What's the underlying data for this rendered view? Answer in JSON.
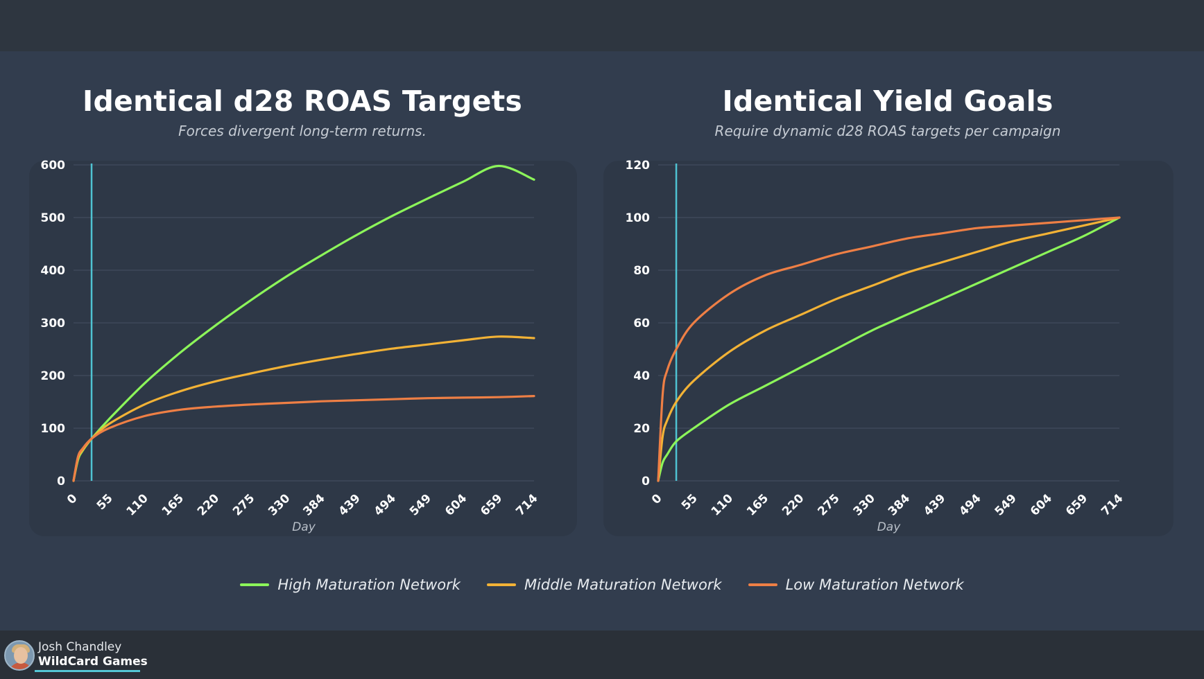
{
  "colors": {
    "high": "#8cf55a",
    "middle": "#f2b236",
    "low": "#ee7f45",
    "marker": "#4fc3d3",
    "grid": "#3e495a"
  },
  "legend": [
    {
      "key": "high",
      "label": "High Maturation Network"
    },
    {
      "key": "middle",
      "label": "Middle Maturation Network"
    },
    {
      "key": "low",
      "label": "Low Maturation Network"
    }
  ],
  "presenter": {
    "name": "Josh Chandley",
    "company": "WildCard Games"
  },
  "chart_data": [
    {
      "type": "line",
      "title": "Identical d28 ROAS Targets",
      "subtitle": "Forces divergent long-term returns.",
      "xlabel": "Day",
      "ylabel": "",
      "xlim": [
        0,
        714
      ],
      "ylim": [
        0,
        600
      ],
      "yticks": [
        0,
        100,
        200,
        300,
        400,
        500,
        600
      ],
      "xticks": [
        0,
        55,
        110,
        165,
        220,
        275,
        330,
        384,
        439,
        494,
        549,
        604,
        659,
        714
      ],
      "marker_day": 28,
      "grid": true,
      "x": [
        0,
        7,
        14,
        28,
        55,
        110,
        165,
        220,
        275,
        330,
        384,
        439,
        494,
        549,
        604,
        659,
        714
      ],
      "series": [
        {
          "name": "High Maturation Network",
          "key": "high",
          "values": [
            0,
            40,
            57,
            80,
            117,
            185,
            243,
            295,
            343,
            388,
            428,
            467,
            503,
            536,
            568,
            598,
            572
          ]
        },
        {
          "name": "Middle Maturation Network",
          "key": "middle",
          "values": [
            0,
            43,
            58,
            80,
            108,
            145,
            170,
            189,
            204,
            218,
            230,
            241,
            251,
            259,
            267,
            274,
            271
          ]
        },
        {
          "name": "Low Maturation Network",
          "key": "low",
          "values": [
            0,
            46,
            61,
            80,
            100,
            123,
            135,
            141,
            145,
            148,
            151,
            153,
            155,
            157,
            158,
            159,
            161
          ]
        }
      ]
    },
    {
      "type": "line",
      "title": "Identical Yield Goals",
      "subtitle": "Require dynamic d28 ROAS targets per campaign",
      "xlabel": "Day",
      "ylabel": "",
      "xlim": [
        0,
        714
      ],
      "ylim": [
        0,
        120
      ],
      "yticks": [
        0,
        20,
        40,
        60,
        80,
        100,
        120
      ],
      "xticks": [
        0,
        55,
        110,
        165,
        220,
        275,
        330,
        384,
        439,
        494,
        549,
        604,
        659,
        714
      ],
      "marker_day": 28,
      "grid": true,
      "x": [
        0,
        7,
        14,
        28,
        55,
        110,
        165,
        220,
        275,
        330,
        384,
        439,
        494,
        549,
        604,
        659,
        714
      ],
      "series": [
        {
          "name": "High Maturation Network",
          "key": "high",
          "values": [
            0,
            7,
            10,
            15,
            20,
            29,
            36,
            43,
            50,
            57,
            63,
            69,
            75,
            81,
            87,
            93,
            100
          ]
        },
        {
          "name": "Middle Maturation Network",
          "key": "middle",
          "values": [
            0,
            17,
            23,
            30,
            38,
            49,
            57,
            63,
            69,
            74,
            79,
            83,
            87,
            91,
            94,
            97,
            100
          ]
        },
        {
          "name": "Low Maturation Network",
          "key": "low",
          "values": [
            0,
            33,
            42,
            50,
            60,
            71,
            78,
            82,
            86,
            89,
            92,
            94,
            96,
            97,
            98,
            99,
            100
          ]
        }
      ]
    }
  ]
}
